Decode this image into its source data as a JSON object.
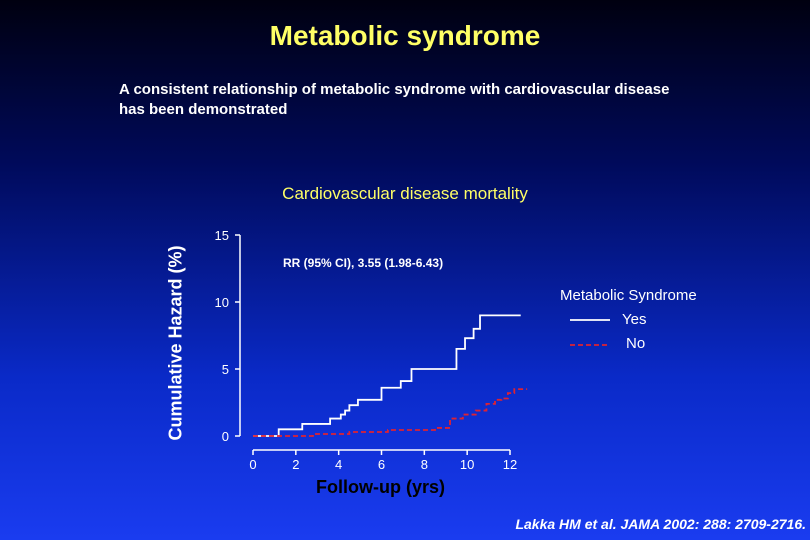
{
  "title": "Metabolic syndrome",
  "subtitle": "A consistent relationship of metabolic syndrome with cardiovascular disease has been demonstrated",
  "source": "Lakka HM et al. JAMA 2002: 288: 2709-2716.",
  "colors": {
    "yes_line": "#ffffff",
    "no_line": "#dd2233",
    "title": "#ffff66"
  },
  "chart_data": {
    "type": "line",
    "title": "Cardiovascular disease mortality",
    "xlabel": "Follow-up (yrs)",
    "ylabel": "Cumulative Hazard (%)",
    "xlim": [
      0,
      12
    ],
    "ylim": [
      0,
      15
    ],
    "xticks": [
      0,
      2,
      4,
      6,
      8,
      10,
      12
    ],
    "yticks": [
      0,
      5,
      10,
      15
    ],
    "annotation": "RR (95% CI), 3.55 (1.98-6.43)",
    "legend_title": "Metabolic Syndrome",
    "legend_position": "right",
    "series": [
      {
        "name": "Yes",
        "style": "solid",
        "step": true,
        "x": [
          0,
          1.0,
          1.2,
          2.3,
          3.6,
          4.1,
          4.3,
          4.5,
          4.9,
          6.0,
          6.9,
          7.4,
          9.5,
          9.9,
          10.3,
          10.6,
          12.5
        ],
        "y": [
          0,
          0,
          0.5,
          0.9,
          1.3,
          1.6,
          1.9,
          2.3,
          2.7,
          3.6,
          4.1,
          5.0,
          6.5,
          7.3,
          8.0,
          9.0,
          9.0
        ]
      },
      {
        "name": "No",
        "style": "dashed",
        "step": true,
        "x": [
          0,
          1.5,
          2.8,
          4.5,
          6.3,
          8.5,
          9.2,
          9.8,
          10.4,
          10.9,
          11.3,
          11.6,
          11.9,
          12.2,
          12.5,
          12.8
        ],
        "y": [
          0,
          0,
          0.15,
          0.3,
          0.45,
          0.6,
          1.3,
          1.6,
          1.9,
          2.4,
          2.7,
          2.8,
          3.2,
          3.5,
          3.5,
          3.5
        ]
      }
    ]
  }
}
